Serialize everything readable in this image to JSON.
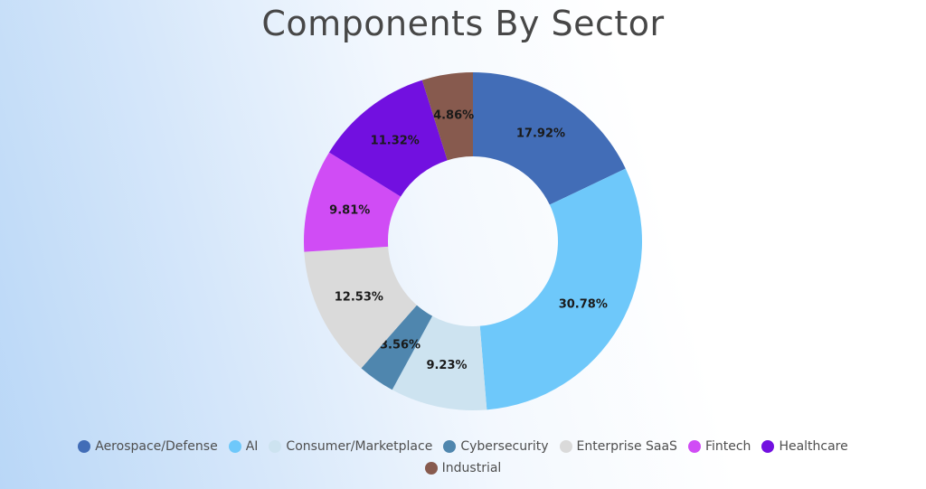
{
  "chart_data": {
    "type": "pie",
    "title": "Components By Sector",
    "categories": [
      "Aerospace/Defense",
      "AI",
      "Consumer/Marketplace",
      "Cybersecurity",
      "Enterprise SaaS",
      "Fintech",
      "Healthcare",
      "Industrial"
    ],
    "values": [
      17.92,
      30.78,
      9.23,
      3.56,
      12.53,
      9.81,
      11.32,
      4.86
    ],
    "labels": [
      "17.92%",
      "30.78%",
      "9.23%",
      "3.56%",
      "12.53%",
      "9.81%",
      "11.32%",
      "4.86%"
    ],
    "colors": [
      "#426db7",
      "#6ec8fa",
      "#cde3f0",
      "#4f86ae",
      "#dadada",
      "#d04cf5",
      "#7210e0",
      "#875a4e"
    ],
    "donut": true,
    "legend_position": "bottom"
  }
}
